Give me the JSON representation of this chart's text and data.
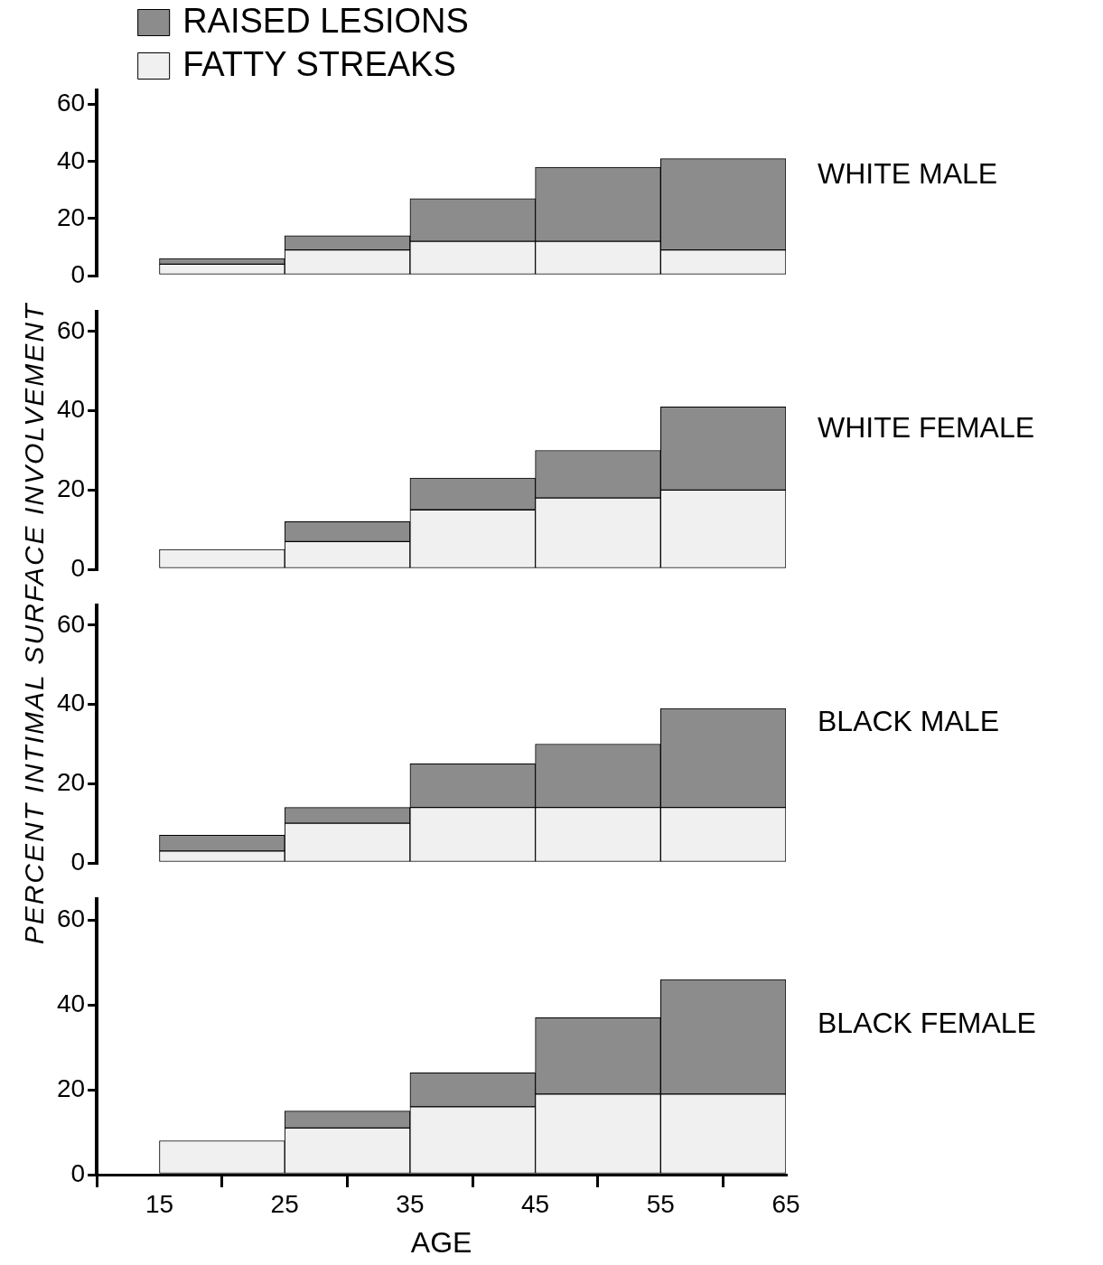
{
  "chart_data": [
    {
      "type": "bar",
      "annotations": [
        "WHITE MALE"
      ],
      "ylabel": "PERCENT INTIMAL SURFACE INVOLVEMENT",
      "x": [
        20,
        30,
        40,
        50,
        60
      ],
      "stacked": true,
      "legend": "top left",
      "xlim": [
        10,
        65
      ],
      "ylim": [
        0,
        65
      ],
      "yticks": [
        0,
        20,
        40,
        60
      ],
      "tick_labels": "y",
      "series": [
        {
          "name": "FATTY STREAKS",
          "color": "#f0f0f0",
          "values": [
            4,
            9,
            12,
            12,
            9
          ]
        },
        {
          "name": "RAISED LESIONS",
          "color": "#8c8c8c",
          "values": [
            2,
            5,
            15,
            26,
            32
          ]
        }
      ]
    },
    {
      "type": "bar",
      "annotations": [
        "WHITE FEMALE"
      ],
      "x": [
        20,
        30,
        40,
        50,
        60
      ],
      "stacked": true,
      "xlim": [
        10,
        65
      ],
      "ylim": [
        0,
        65
      ],
      "yticks": [
        0,
        20,
        40,
        60
      ],
      "tick_labels": "y",
      "series": [
        {
          "color": "#f0f0f0",
          "values": [
            5,
            7,
            15,
            18,
            20
          ]
        },
        {
          "color": "#8c8c8c",
          "values": [
            0,
            5,
            8,
            12,
            21
          ]
        }
      ]
    },
    {
      "type": "bar",
      "annotations": [
        "BLACK MALE"
      ],
      "x": [
        20,
        30,
        40,
        50,
        60
      ],
      "stacked": true,
      "xlim": [
        10,
        65
      ],
      "ylim": [
        0,
        65
      ],
      "yticks": [
        0,
        20,
        40,
        60
      ],
      "tick_labels": "y",
      "series": [
        {
          "color": "#f0f0f0",
          "values": [
            3,
            10,
            14,
            14,
            14
          ]
        },
        {
          "color": "#8c8c8c",
          "values": [
            4,
            4,
            11,
            16,
            25
          ]
        }
      ]
    },
    {
      "type": "bar",
      "annotations": [
        "BLACK FEMALE"
      ],
      "xlabel": "AGE",
      "x": [
        20,
        30,
        40,
        50,
        60
      ],
      "stacked": true,
      "xlim": [
        10,
        65
      ],
      "xticks": [
        15,
        25,
        35,
        45,
        55,
        65
      ],
      "ylim": [
        0,
        65
      ],
      "yticks": [
        0,
        20,
        40,
        60
      ],
      "series": [
        {
          "color": "#f0f0f0",
          "values": [
            8,
            11,
            16,
            19,
            19
          ]
        },
        {
          "color": "#8c8c8c",
          "values": [
            0,
            4,
            8,
            18,
            27
          ]
        }
      ]
    }
  ]
}
